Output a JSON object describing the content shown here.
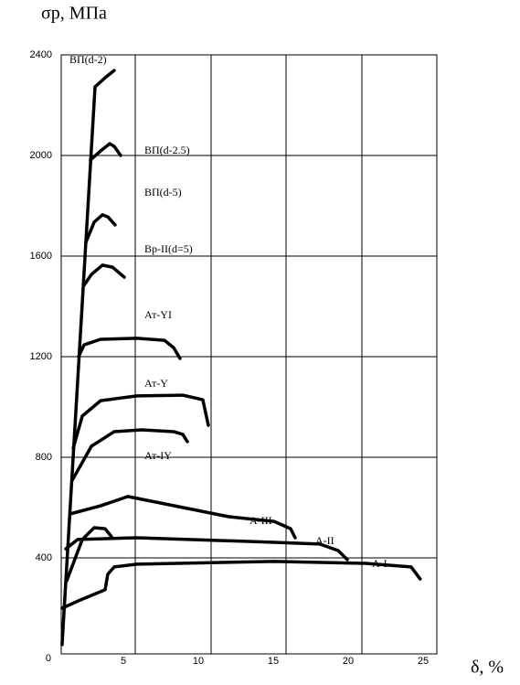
{
  "chart_data": {
    "type": "line",
    "y_label": "σр, МПа",
    "x_label": "δ, %",
    "ylim": [
      0,
      2400
    ],
    "yticks": [
      0,
      400,
      800,
      1200,
      1600,
      2000,
      2400
    ],
    "xlim": [
      0,
      25
    ],
    "xticks": [
      5,
      10,
      15,
      20,
      25
    ],
    "grid": true,
    "series": [
      {
        "name": "ВП(d-2)",
        "color": "#000000",
        "x": [
          0.91,
          3.11,
          3.78,
          4.39
        ],
        "values": [
          55,
          2273,
          2309,
          2338
        ]
      },
      {
        "name": "ВП(d-2.5)",
        "color": "#000000",
        "x": [
          2.8,
          3.48,
          4.09,
          4.39,
          4.82
        ],
        "values": [
          1982,
          2018,
          2047,
          2036,
          2000
        ]
      },
      {
        "name": "ВП(d-5)",
        "color": "#000000",
        "x": [
          2.5,
          3.05,
          3.6,
          3.96,
          4.45
        ],
        "values": [
          1655,
          1735,
          1764,
          1756,
          1724
        ]
      },
      {
        "name": "Вр-II(d=5)",
        "color": "#000000",
        "x": [
          2.38,
          2.87,
          3.6,
          4.27,
          5.06
        ],
        "values": [
          1484,
          1527,
          1564,
          1556,
          1516
        ]
      },
      {
        "name": "Ат-YI",
        "color": "#000000",
        "x": [
          2.01,
          2.38,
          3.48,
          5.91,
          7.74,
          8.35,
          8.78
        ],
        "values": [
          1200,
          1247,
          1269,
          1273,
          1265,
          1236,
          1193
        ]
      },
      {
        "name": "Ат-Y",
        "color": "#000000",
        "x": [
          1.65,
          2.26,
          3.48,
          5.91,
          8.96,
          10.3,
          10.67
        ],
        "values": [
          836,
          964,
          1025,
          1044,
          1047,
          1029,
          927
        ]
      },
      {
        "name": "Ат-IY",
        "color": "#000000",
        "x": [
          1.59,
          2.87,
          4.39,
          6.22,
          8.35,
          8.96,
          9.27
        ],
        "values": [
          709,
          844,
          902,
          909,
          902,
          891,
          862
        ]
      },
      {
        "name": "А-III",
        "color": "#000000",
        "x": [
          1.46,
          3.48,
          5.3,
          12.0,
          15.06,
          16.16,
          16.46
        ],
        "values": [
          575,
          607,
          644,
          564,
          545,
          516,
          480
        ]
      },
      {
        "name": "А-II",
        "color": "#000000",
        "x": [
          1.16,
          1.95,
          5.91,
          15.06,
          18.1,
          19.33,
          19.94
        ],
        "values": [
          436,
          473,
          480,
          462,
          455,
          429,
          393
        ]
      },
      {
        "color": "#000000",
        "x": [
          1.22,
          2.26,
          3.05,
          3.78,
          4.21
        ],
        "values": [
          309,
          473,
          520,
          516,
          484
        ]
      },
      {
        "name": "А-I",
        "color": "#000000",
        "x": [
          0.91,
          2.26,
          3.78,
          3.96,
          4.39,
          5.91,
          15.06,
          21.16,
          24.2,
          24.8
        ],
        "values": [
          200,
          236,
          273,
          335,
          364,
          375,
          386,
          378,
          364,
          316
        ]
      }
    ]
  }
}
